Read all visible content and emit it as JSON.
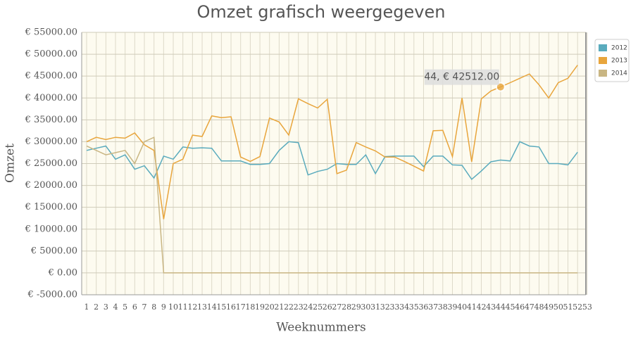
{
  "chart_data": {
    "type": "line",
    "title": "Omzet grafisch weergegeven",
    "x_label": "Weeknummers",
    "y_label": "Omzet",
    "categories": [
      "1",
      "2",
      "3",
      "4",
      "5",
      "6",
      "7",
      "8",
      "9",
      "10",
      "11",
      "12",
      "13",
      "14",
      "15",
      "16",
      "17",
      "18",
      "19",
      "20",
      "21",
      "22",
      "23",
      "24",
      "25",
      "26",
      "27",
      "28",
      "29",
      "30",
      "31",
      "32",
      "33",
      "34",
      "35",
      "36",
      "37",
      "38",
      "39",
      "40",
      "41",
      "42",
      "43",
      "44",
      "45",
      "46",
      "47",
      "48",
      "49",
      "50",
      "51",
      "52",
      "53"
    ],
    "series": [
      {
        "name": "2012",
        "color": "#5aabbd",
        "values": [
          28000,
          28500,
          29000,
          26000,
          27000,
          23700,
          24500,
          21700,
          26700,
          26000,
          28800,
          28500,
          28600,
          28500,
          25600,
          25600,
          25600,
          24800,
          24800,
          25000,
          28000,
          30000,
          29800,
          22400,
          23200,
          23700,
          25000,
          24800,
          24800,
          27000,
          22700,
          26600,
          26700,
          26700,
          26700,
          24300,
          26700,
          26700,
          24700,
          24600,
          21400,
          23300,
          25400,
          25800,
          25600,
          30000,
          29000,
          28800,
          25000,
          25000,
          24700,
          27600,
          null
        ]
      },
      {
        "name": "2013",
        "color": "#e8a53c",
        "values": [
          30000,
          31000,
          30500,
          31000,
          30800,
          32000,
          29300,
          28000,
          12300,
          25000,
          26000,
          31500,
          31200,
          35900,
          35500,
          35700,
          26500,
          25500,
          26600,
          35400,
          34500,
          31500,
          39800,
          38700,
          37700,
          39700,
          22700,
          23500,
          29800,
          28800,
          27900,
          26500,
          26500,
          25500,
          24400,
          23300,
          32500,
          32600,
          26600,
          40000,
          25400,
          39800,
          41600,
          42512,
          43500,
          44500,
          45500,
          43000,
          40000,
          43500,
          44500,
          47500,
          null
        ]
      },
      {
        "name": "2014",
        "color": "#c9b683",
        "values": [
          29000,
          28000,
          27000,
          27500,
          28000,
          25000,
          30000,
          31000,
          0,
          0,
          0,
          0,
          0,
          0,
          0,
          0,
          0,
          0,
          0,
          0,
          0,
          0,
          0,
          0,
          0,
          0,
          0,
          0,
          0,
          0,
          0,
          0,
          0,
          0,
          0,
          0,
          0,
          0,
          0,
          0,
          0,
          0,
          0,
          0,
          0,
          0,
          0,
          0,
          0,
          0,
          0,
          0,
          null
        ]
      }
    ],
    "ylim": [
      -5000,
      55000
    ],
    "yticks": [
      {
        "value": -5000,
        "label": "€ -5000.00"
      },
      {
        "value": 0,
        "label": "€ 0.00"
      },
      {
        "value": 5000,
        "label": "€ 5000.00"
      },
      {
        "value": 10000,
        "label": "€ 10000.00"
      },
      {
        "value": 15000,
        "label": "€ 15000.00"
      },
      {
        "value": 20000,
        "label": "€ 20000.00"
      },
      {
        "value": 25000,
        "label": "€ 25000.00"
      },
      {
        "value": 30000,
        "label": "€ 30000.00"
      },
      {
        "value": 35000,
        "label": "€ 35000.00"
      },
      {
        "value": 40000,
        "label": "€ 40000.00"
      },
      {
        "value": 45000,
        "label": "€ 45000.00"
      },
      {
        "value": 50000,
        "label": "€ 50000.00"
      },
      {
        "value": 55000,
        "label": "€ 55000.00"
      }
    ],
    "grid": true,
    "legend": "right",
    "annotation": "44, € 42512.00"
  }
}
